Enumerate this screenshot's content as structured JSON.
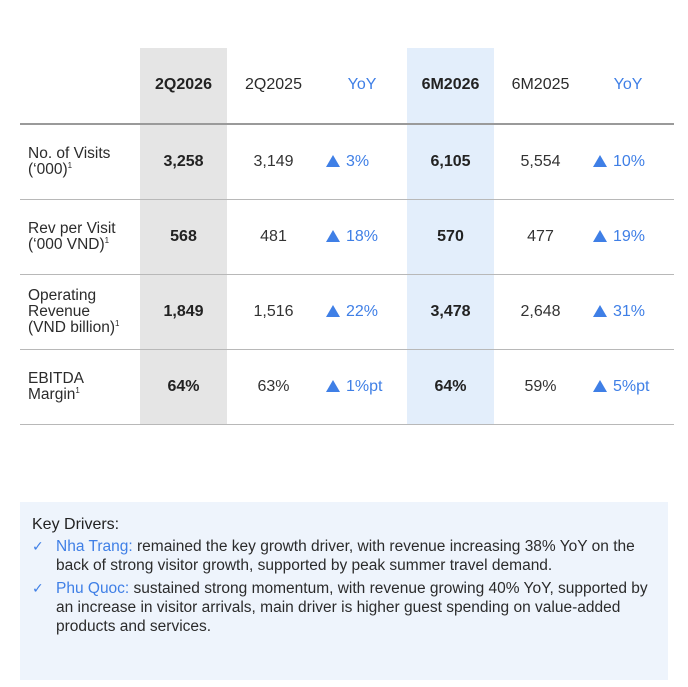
{
  "table": {
    "headers": [
      "2Q2026",
      "2Q2025",
      "YoY",
      "6M2026",
      "6M2025",
      "YoY"
    ],
    "rows": [
      {
        "metric_lines": [
          "No. of Visits",
          "(‘000)"
        ],
        "footnote": "1",
        "q_cur": "3,258",
        "q_prev": "3,149",
        "q_yoy": "3%",
        "h_cur": "6,105",
        "h_prev": "5,554",
        "h_yoy": "10%"
      },
      {
        "metric_lines": [
          "Rev per Visit",
          "(‘000 VND)"
        ],
        "footnote": "1",
        "q_cur": "568",
        "q_prev": "481",
        "q_yoy": "18%",
        "h_cur": "570",
        "h_prev": "477",
        "h_yoy": "19%"
      },
      {
        "metric_lines": [
          "Operating",
          "Revenue",
          "(VND billion)"
        ],
        "footnote": "1",
        "q_cur": "1,849",
        "q_prev": "1,516",
        "q_yoy": "22%",
        "h_cur": "3,478",
        "h_prev": "2,648",
        "h_yoy": "31%"
      },
      {
        "metric_lines": [
          "EBITDA",
          "Margin"
        ],
        "footnote": "1",
        "q_cur": "64%",
        "q_prev": "63%",
        "q_yoy": "1%pt",
        "h_cur": "64%",
        "h_prev": "59%",
        "h_yoy": "5%pt"
      }
    ]
  },
  "key_drivers": {
    "title": "Key Drivers:",
    "items": [
      {
        "place": "Nha Trang:",
        "text": " remained the key growth driver, with revenue increasing 38% YoY on the back of strong visitor growth, supported by peak summer travel demand."
      },
      {
        "place": "Phu Quoc:",
        "text": " sustained strong momentum, with revenue growing 40% YoY, supported by an increase in visitor arrivals, main driver is higher guest spending on value-added products and services."
      }
    ]
  },
  "icons": {
    "up": "triangle-up-icon",
    "check": "checkmark-icon"
  },
  "colors": {
    "accent": "#3f7fe6",
    "quarter_band": "#e5e5e5",
    "half_band": "#e3eefb",
    "drivers_bg": "#eef4fc"
  }
}
